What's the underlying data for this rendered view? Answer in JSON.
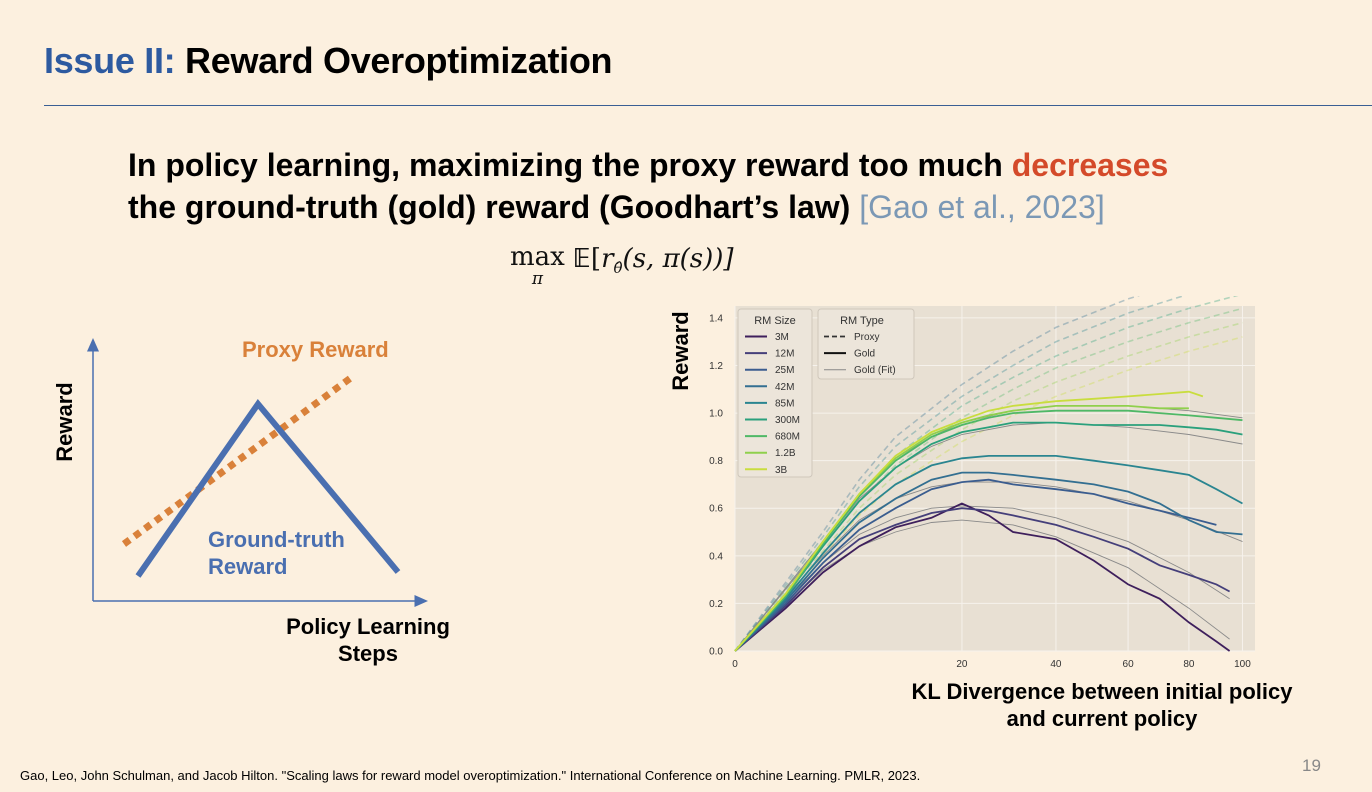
{
  "slide": {
    "title_prefix": "Issue II:",
    "title_main": " Reward Overoptimization",
    "headline_part1": "In policy learning, maximizing the proxy reward too much ",
    "headline_highlight": "decreases",
    "headline_part2": "the ground-truth (gold) reward (Goodhart’s law) ",
    "headline_citation": "[Gao et al., 2023]",
    "formula_max": "max",
    "formula_pi": "π",
    "formula_body_E": "𝔼",
    "formula_body_open": "[",
    "formula_r": "r",
    "formula_theta": "θ̂",
    "formula_args": "(s, π(s))]",
    "footer": "Gao, Leo, John Schulman, and Jacob Hilton. \"Scaling laws for reward model overoptimization.\" International Conference on Machine Learning. PMLR, 2023.",
    "page_number": "19"
  },
  "schematic": {
    "y_label": "Reward",
    "x_label_line1": "Policy Learning",
    "x_label_line2": "Steps",
    "proxy_label": "Proxy Reward",
    "gold_label_line1": "Ground-truth",
    "gold_label_line2": "Reward",
    "colors": {
      "proxy": "#d9813a",
      "gold": "#4a6fb0"
    }
  },
  "chart_data": {
    "type": "line",
    "ylabel": "Reward",
    "xlabel": "KL Divergence between initial policy and current policy",
    "x_scale": "sqrt",
    "xlim": [
      0,
      105
    ],
    "ylim": [
      0,
      1.45
    ],
    "x_ticks": [
      "0",
      "20",
      "40",
      "60",
      "80",
      "100"
    ],
    "y_ticks": [
      "0.0",
      "0.2",
      "0.4",
      "0.6",
      "0.8",
      "1.0",
      "1.2",
      "1.4"
    ],
    "grid": true,
    "legend_size": {
      "title": "RM Size",
      "entries": [
        "3M",
        "12M",
        "25M",
        "42M",
        "85M",
        "300M",
        "680M",
        "1.2B",
        "3B"
      ],
      "colors": [
        "#3e1f5c",
        "#453f7a",
        "#3b5d8f",
        "#336f91",
        "#2a8590",
        "#2aa07c",
        "#4fb866",
        "#8fd04c",
        "#c9dd3e"
      ]
    },
    "legend_type": {
      "title": "RM Type",
      "entries": [
        "Proxy",
        "Gold",
        "Gold (Fit)"
      ]
    },
    "series_gold": [
      {
        "x": [
          0,
          1,
          3,
          6,
          10,
          15,
          20,
          25,
          30,
          40,
          50,
          60,
          70,
          80,
          90,
          95
        ],
        "y": [
          0,
          0.18,
          0.33,
          0.44,
          0.52,
          0.56,
          0.62,
          0.57,
          0.5,
          0.47,
          0.38,
          0.28,
          0.22,
          0.12,
          0.04,
          0.0
        ]
      },
      {
        "x": [
          0,
          1,
          3,
          6,
          10,
          15,
          20,
          25,
          30,
          40,
          50,
          60,
          70,
          80,
          90,
          95
        ],
        "y": [
          0,
          0.19,
          0.35,
          0.47,
          0.53,
          0.58,
          0.6,
          0.59,
          0.57,
          0.53,
          0.48,
          0.43,
          0.36,
          0.32,
          0.28,
          0.25
        ]
      },
      {
        "x": [
          0,
          1,
          3,
          6,
          10,
          15,
          20,
          25,
          30,
          40,
          50,
          60,
          70,
          80,
          90
        ],
        "y": [
          0,
          0.2,
          0.37,
          0.51,
          0.6,
          0.68,
          0.71,
          0.72,
          0.7,
          0.68,
          0.66,
          0.62,
          0.59,
          0.56,
          0.53
        ]
      },
      {
        "x": [
          0,
          1,
          3,
          6,
          10,
          15,
          20,
          25,
          30,
          40,
          50,
          60,
          70,
          80,
          90,
          100
        ],
        "y": [
          0,
          0.21,
          0.39,
          0.54,
          0.64,
          0.72,
          0.75,
          0.75,
          0.74,
          0.72,
          0.7,
          0.67,
          0.62,
          0.55,
          0.5,
          0.49
        ]
      },
      {
        "x": [
          0,
          1,
          3,
          6,
          10,
          15,
          20,
          25,
          30,
          40,
          50,
          60,
          70,
          80,
          90,
          100
        ],
        "y": [
          0,
          0.22,
          0.41,
          0.58,
          0.7,
          0.78,
          0.81,
          0.82,
          0.82,
          0.82,
          0.8,
          0.78,
          0.76,
          0.74,
          0.68,
          0.62
        ]
      },
      {
        "x": [
          0,
          1,
          3,
          6,
          10,
          15,
          20,
          25,
          30,
          40,
          50,
          60,
          70,
          80,
          90,
          100
        ],
        "y": [
          0,
          0.23,
          0.44,
          0.63,
          0.77,
          0.87,
          0.92,
          0.94,
          0.96,
          0.96,
          0.95,
          0.95,
          0.95,
          0.94,
          0.93,
          0.91
        ]
      },
      {
        "x": [
          0,
          1,
          3,
          6,
          10,
          15,
          20,
          25,
          30,
          40,
          50,
          60,
          70,
          80,
          90,
          100
        ],
        "y": [
          0,
          0.23,
          0.45,
          0.65,
          0.8,
          0.9,
          0.95,
          0.98,
          1.0,
          1.01,
          1.01,
          1.01,
          1.0,
          0.99,
          0.98,
          0.97
        ]
      },
      {
        "x": [
          0,
          1,
          3,
          6,
          10,
          15,
          20,
          25,
          30,
          40,
          50,
          60,
          70,
          80
        ],
        "y": [
          0,
          0.24,
          0.46,
          0.66,
          0.81,
          0.91,
          0.96,
          0.99,
          1.01,
          1.03,
          1.03,
          1.03,
          1.02,
          1.02
        ]
      },
      {
        "x": [
          0,
          1,
          3,
          6,
          10,
          15,
          20,
          25,
          30,
          40,
          50,
          60,
          70,
          80,
          85
        ],
        "y": [
          0,
          0.24,
          0.46,
          0.66,
          0.82,
          0.92,
          0.97,
          1.01,
          1.03,
          1.05,
          1.06,
          1.07,
          1.08,
          1.09,
          1.07
        ]
      }
    ],
    "series_proxy": [
      {
        "x": [
          0,
          3,
          6,
          10,
          20,
          30,
          40,
          60,
          80,
          100
        ],
        "y": [
          0,
          0.5,
          0.72,
          0.9,
          1.12,
          1.26,
          1.36,
          1.48,
          1.56,
          1.62
        ]
      },
      {
        "x": [
          0,
          3,
          6,
          10,
          20,
          30,
          40,
          60,
          80,
          100
        ],
        "y": [
          0,
          0.48,
          0.69,
          0.86,
          1.07,
          1.2,
          1.3,
          1.42,
          1.5,
          1.56
        ]
      },
      {
        "x": [
          0,
          3,
          6,
          10,
          20,
          30,
          40,
          60,
          80,
          100
        ],
        "y": [
          0,
          0.46,
          0.66,
          0.82,
          1.03,
          1.15,
          1.24,
          1.36,
          1.44,
          1.5
        ]
      },
      {
        "x": [
          0,
          3,
          6,
          10,
          20,
          30,
          40,
          60,
          80,
          100
        ],
        "y": [
          0,
          0.44,
          0.63,
          0.78,
          0.98,
          1.1,
          1.19,
          1.3,
          1.38,
          1.44
        ]
      },
      {
        "x": [
          0,
          3,
          6,
          10,
          20,
          30,
          40,
          60,
          80,
          100
        ],
        "y": [
          0,
          0.42,
          0.6,
          0.74,
          0.93,
          1.05,
          1.13,
          1.24,
          1.32,
          1.38
        ]
      },
      {
        "x": [
          0,
          3,
          6,
          10,
          20,
          30,
          40,
          60,
          80,
          100
        ],
        "y": [
          0,
          0.4,
          0.57,
          0.7,
          0.88,
          0.99,
          1.07,
          1.18,
          1.26,
          1.32
        ]
      }
    ],
    "series_fit": [
      {
        "x": [
          0,
          3,
          6,
          10,
          15,
          20,
          30,
          40,
          60,
          80,
          95
        ],
        "y": [
          0,
          0.34,
          0.44,
          0.5,
          0.54,
          0.55,
          0.53,
          0.48,
          0.35,
          0.18,
          0.05
        ]
      },
      {
        "x": [
          0,
          3,
          6,
          10,
          15,
          20,
          30,
          40,
          60,
          80,
          95
        ],
        "y": [
          0,
          0.37,
          0.49,
          0.56,
          0.6,
          0.61,
          0.6,
          0.56,
          0.46,
          0.33,
          0.22
        ]
      },
      {
        "x": [
          0,
          3,
          6,
          10,
          15,
          20,
          30,
          40,
          60,
          80,
          100
        ],
        "y": [
          0,
          0.4,
          0.55,
          0.64,
          0.69,
          0.71,
          0.71,
          0.69,
          0.63,
          0.55,
          0.46
        ]
      },
      {
        "x": [
          0,
          3,
          6,
          10,
          15,
          20,
          30,
          40,
          60,
          80,
          100
        ],
        "y": [
          0,
          0.45,
          0.64,
          0.77,
          0.86,
          0.91,
          0.95,
          0.96,
          0.94,
          0.91,
          0.87
        ]
      },
      {
        "x": [
          0,
          3,
          6,
          10,
          15,
          20,
          30,
          40,
          60,
          80,
          100
        ],
        "y": [
          0,
          0.46,
          0.66,
          0.81,
          0.9,
          0.96,
          1.01,
          1.03,
          1.03,
          1.01,
          0.98
        ]
      }
    ]
  }
}
